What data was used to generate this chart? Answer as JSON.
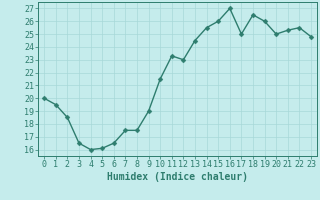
{
  "x": [
    0,
    1,
    2,
    3,
    4,
    5,
    6,
    7,
    8,
    9,
    10,
    11,
    12,
    13,
    14,
    15,
    16,
    17,
    18,
    19,
    20,
    21,
    22,
    23
  ],
  "y": [
    20.0,
    19.5,
    18.5,
    16.5,
    16.0,
    16.1,
    16.5,
    17.5,
    17.5,
    19.0,
    21.5,
    23.3,
    23.0,
    24.5,
    25.5,
    26.0,
    27.0,
    25.0,
    26.5,
    26.0,
    25.0,
    25.3,
    25.5,
    24.8
  ],
  "xlabel": "Humidex (Indice chaleur)",
  "xlim": [
    -0.5,
    23.5
  ],
  "ylim": [
    15.5,
    27.5
  ],
  "yticks": [
    16,
    17,
    18,
    19,
    20,
    21,
    22,
    23,
    24,
    25,
    26,
    27
  ],
  "xticks": [
    0,
    1,
    2,
    3,
    4,
    5,
    6,
    7,
    8,
    9,
    10,
    11,
    12,
    13,
    14,
    15,
    16,
    17,
    18,
    19,
    20,
    21,
    22,
    23
  ],
  "line_color": "#2e7d6e",
  "bg_color": "#c5ecec",
  "grid_color": "#a8d8d8",
  "tick_label_color": "#2e7d6e",
  "xlabel_color": "#2e7d6e",
  "xlabel_fontsize": 7,
  "tick_fontsize": 6,
  "linewidth": 1.0,
  "markersize": 2.5
}
